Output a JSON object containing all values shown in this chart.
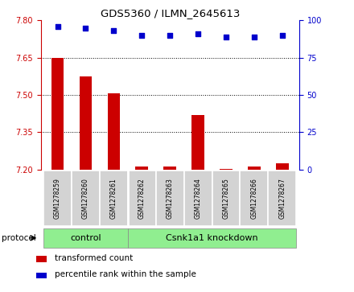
{
  "title": "GDS5360 / ILMN_2645613",
  "samples": [
    "GSM1278259",
    "GSM1278260",
    "GSM1278261",
    "GSM1278262",
    "GSM1278263",
    "GSM1278264",
    "GSM1278265",
    "GSM1278266",
    "GSM1278267"
  ],
  "transformed_count": [
    7.648,
    7.575,
    7.505,
    7.213,
    7.212,
    7.42,
    7.203,
    7.212,
    7.225
  ],
  "percentile_rank": [
    96,
    95,
    93,
    90,
    90,
    91,
    89,
    89,
    90
  ],
  "ylim_left": [
    7.2,
    7.8
  ],
  "ylim_right": [
    0,
    100
  ],
  "yticks_left": [
    7.2,
    7.35,
    7.5,
    7.65,
    7.8
  ],
  "yticks_right": [
    0,
    25,
    50,
    75,
    100
  ],
  "bar_color": "#cc0000",
  "dot_color": "#0000cc",
  "bar_width": 0.45,
  "control_label": "control",
  "knockdown_label": "Csnk1a1 knockdown",
  "protocol_label": "protocol",
  "legend_bar_label": "transformed count",
  "legend_dot_label": "percentile rank within the sample",
  "tick_color_left": "#cc0000",
  "tick_color_right": "#0000cc",
  "bg_color_ticks": "#d3d3d3",
  "group_bar_color": "#90ee90",
  "n_control": 3,
  "n_total": 9
}
